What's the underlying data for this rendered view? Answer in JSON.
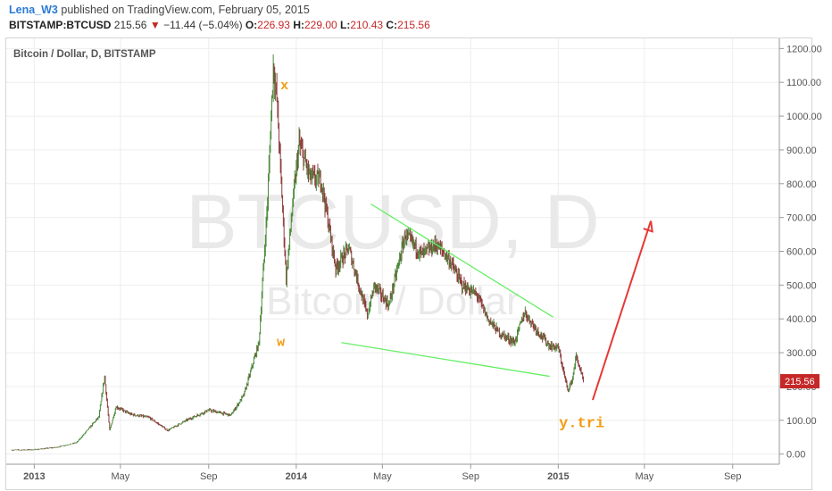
{
  "header": {
    "author": "Lena_W3",
    "published_text": "published on TradingView.com, February 05, 2015",
    "symbol": "BITSTAMP:BTCUSD",
    "last": "215.56",
    "change_arrow": "▼",
    "change": "−11.44 (−5.04%)",
    "o_label": "O:",
    "o_value": "226.93",
    "h_label": "H:",
    "h_value": "229.00",
    "l_label": "L:",
    "l_value": "210.43",
    "c_label": "C:",
    "c_value": "215.56"
  },
  "chart_data": {
    "type": "line",
    "title": "Bitcoin / Dollar, D, BITSTAMP",
    "watermark_symbol": "BTCUSD, D",
    "watermark_name": "Bitcoin / Dollar",
    "x_tick_labels": [
      "2013",
      "May",
      "Sep",
      "2014",
      "May",
      "Sep",
      "2015",
      "May",
      "Sep"
    ],
    "y_tick_labels": [
      "0.00",
      "100.00",
      "200.00",
      "300.00",
      "400.00",
      "500.00",
      "600.00",
      "700.00",
      "800.00",
      "900.00",
      "1000.00",
      "1100.00",
      "1200.00"
    ],
    "ylim": [
      -30,
      1230
    ],
    "grid": true,
    "price_label": "215.56",
    "series": [
      {
        "values": [
          [
            "2012-12-01",
            12
          ],
          [
            "2013-01-01",
            13
          ],
          [
            "2013-02-01",
            20
          ],
          [
            "2013-03-01",
            34
          ],
          [
            "2013-04-01",
            110
          ],
          [
            "2013-04-09",
            230
          ],
          [
            "2013-04-16",
            70
          ],
          [
            "2013-04-25",
            140
          ],
          [
            "2013-05-15",
            118
          ],
          [
            "2013-06-10",
            108
          ],
          [
            "2013-07-06",
            70
          ],
          [
            "2013-08-01",
            100
          ],
          [
            "2013-09-01",
            130
          ],
          [
            "2013-10-02",
            115
          ],
          [
            "2013-10-20",
            175
          ],
          [
            "2013-11-10",
            330
          ],
          [
            "2013-11-22",
            750
          ],
          [
            "2013-11-30",
            1150
          ],
          [
            "2013-12-05",
            1050
          ],
          [
            "2013-12-18",
            520
          ],
          [
            "2013-12-27",
            740
          ],
          [
            "2014-01-05",
            920
          ],
          [
            "2014-01-20",
            820
          ],
          [
            "2014-02-05",
            810
          ],
          [
            "2014-02-25",
            550
          ],
          [
            "2014-03-15",
            610
          ],
          [
            "2014-04-10",
            410
          ],
          [
            "2014-04-20",
            500
          ],
          [
            "2014-05-10",
            440
          ],
          [
            "2014-06-02",
            650
          ],
          [
            "2014-06-25",
            590
          ],
          [
            "2014-07-15",
            620
          ],
          [
            "2014-08-01",
            580
          ],
          [
            "2014-08-20",
            500
          ],
          [
            "2014-09-10",
            470
          ],
          [
            "2014-09-25",
            400
          ],
          [
            "2014-10-10",
            360
          ],
          [
            "2014-11-01",
            330
          ],
          [
            "2014-11-15",
            420
          ],
          [
            "2014-12-01",
            370
          ],
          [
            "2014-12-20",
            320
          ],
          [
            "2015-01-01",
            315
          ],
          [
            "2015-01-14",
            190
          ],
          [
            "2015-01-20",
            215
          ],
          [
            "2015-01-26",
            290
          ],
          [
            "2015-02-05",
            215.56
          ]
        ]
      }
    ],
    "annotations": [
      {
        "text": "x",
        "date": "2013-12-10",
        "price": 1080,
        "color": "#f39c12"
      },
      {
        "text": "w",
        "date": "2013-12-05",
        "price": 320,
        "color": "#f39c12"
      },
      {
        "text": "y.tri",
        "date": "2015-01-02",
        "price": 80,
        "color": "#f39c12"
      }
    ],
    "trendlines": [
      {
        "name": "upper-trendline",
        "color": "#66ee66",
        "from": [
          "2014-04-15",
          740
        ],
        "to": [
          "2014-12-25",
          405
        ]
      },
      {
        "name": "lower-trendline",
        "color": "#66ee66",
        "from": [
          "2014-03-05",
          330
        ],
        "to": [
          "2014-12-20",
          230
        ]
      }
    ],
    "arrow": {
      "color": "#e53935",
      "from": [
        "2015-02-18",
        160
      ],
      "to": [
        "2015-05-10",
        690
      ]
    }
  }
}
